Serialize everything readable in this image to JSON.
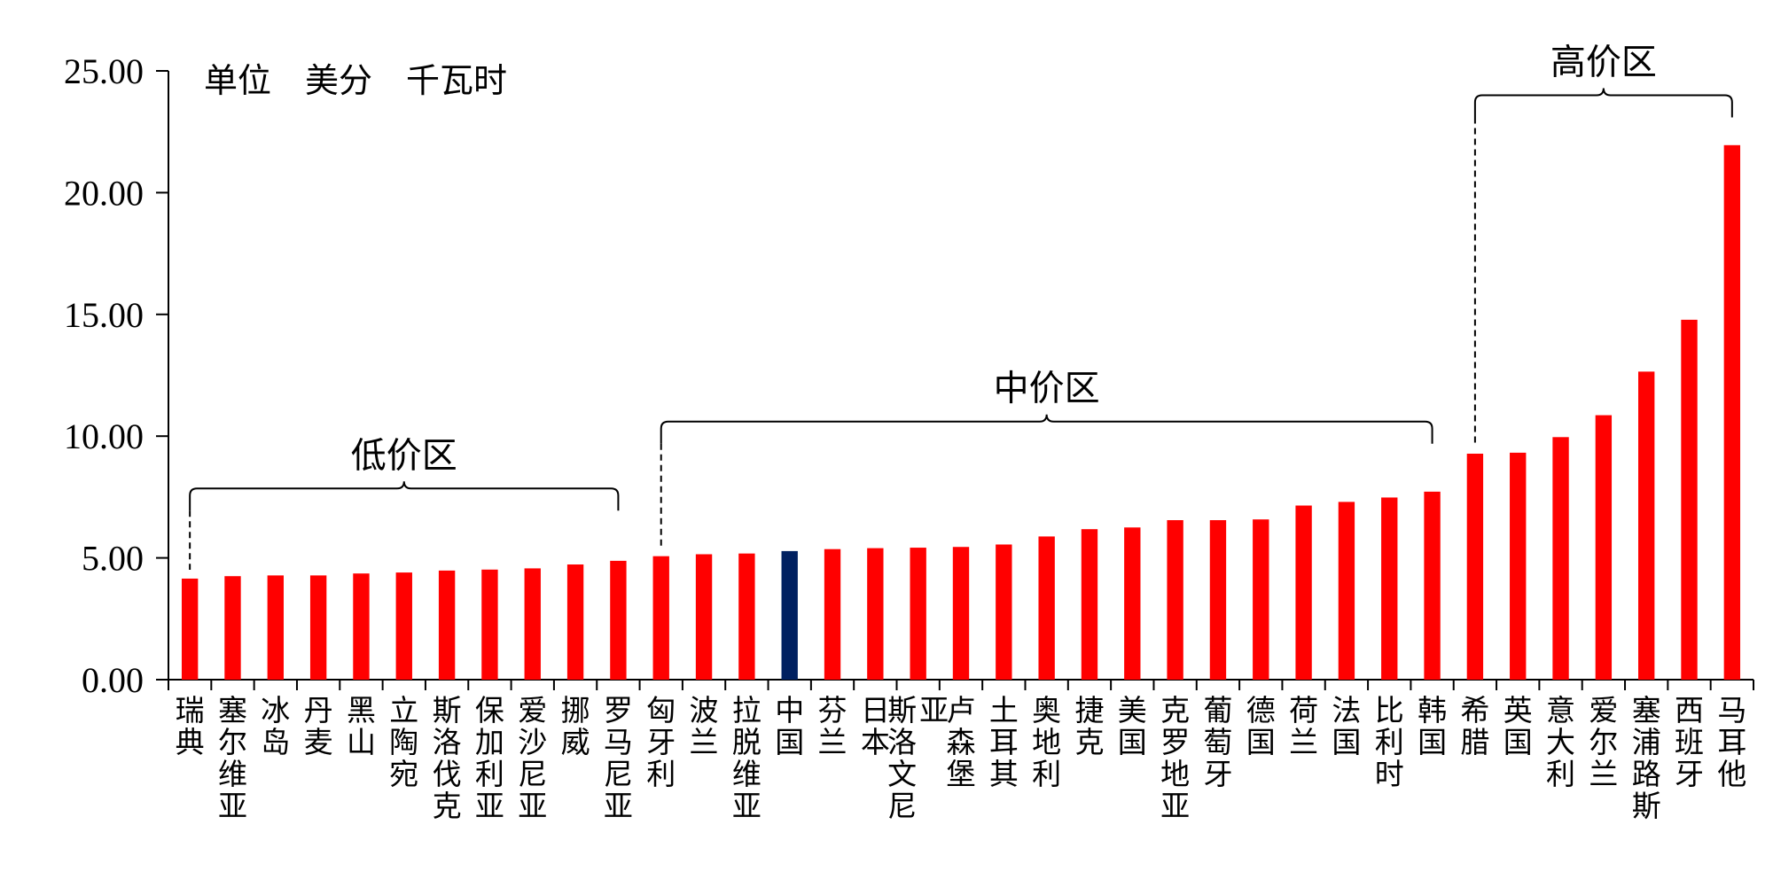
{
  "chart_data": {
    "type": "bar",
    "unit_label": "单位　美分　千瓦时",
    "ylim": [
      0,
      25
    ],
    "yticks": [
      "0.00",
      "5.00",
      "10.00",
      "15.00",
      "20.00",
      "25.00"
    ],
    "grid": false,
    "legend": "none",
    "colors": {
      "default": "#ff0000",
      "highlight": "#002060",
      "axis": "#000000"
    },
    "highlight_category": "中国",
    "categories": [
      "瑞典",
      "塞尔维亚",
      "冰岛",
      "丹麦",
      "黑山",
      "立陶宛",
      "斯洛伐克",
      "保加利亚",
      "爱沙尼亚",
      "挪威",
      "罗马尼亚",
      "匈牙利",
      "波兰",
      "拉脱维亚",
      "中国",
      "芬兰",
      "日本",
      "斯洛文尼亚",
      "卢森堡",
      "土耳其",
      "奥地利",
      "捷克",
      "美国",
      "克罗地亚",
      "葡萄牙",
      "德国",
      "荷兰",
      "法国",
      "比利时",
      "韩国",
      "希腊",
      "英国",
      "意大利",
      "爱尔兰",
      "塞浦路斯",
      "西班牙",
      "马耳他"
    ],
    "values": [
      4.15,
      4.25,
      4.28,
      4.28,
      4.36,
      4.4,
      4.48,
      4.52,
      4.57,
      4.73,
      4.88,
      5.07,
      5.15,
      5.18,
      5.28,
      5.36,
      5.4,
      5.42,
      5.45,
      5.55,
      5.88,
      6.18,
      6.25,
      6.55,
      6.55,
      6.58,
      7.15,
      7.3,
      7.48,
      7.72,
      9.28,
      9.32,
      9.96,
      10.86,
      12.65,
      14.78,
      21.95
    ],
    "annotations": [
      {
        "label": "低价区",
        "from_index": 0,
        "to_index": 10,
        "bracket_value": 7.85
      },
      {
        "label": "中价区",
        "from_index": 11,
        "to_index": 29,
        "bracket_value": 10.6
      },
      {
        "label": "高价区",
        "from_index": 30,
        "to_index": 36,
        "bracket_value": 24.0
      }
    ]
  }
}
